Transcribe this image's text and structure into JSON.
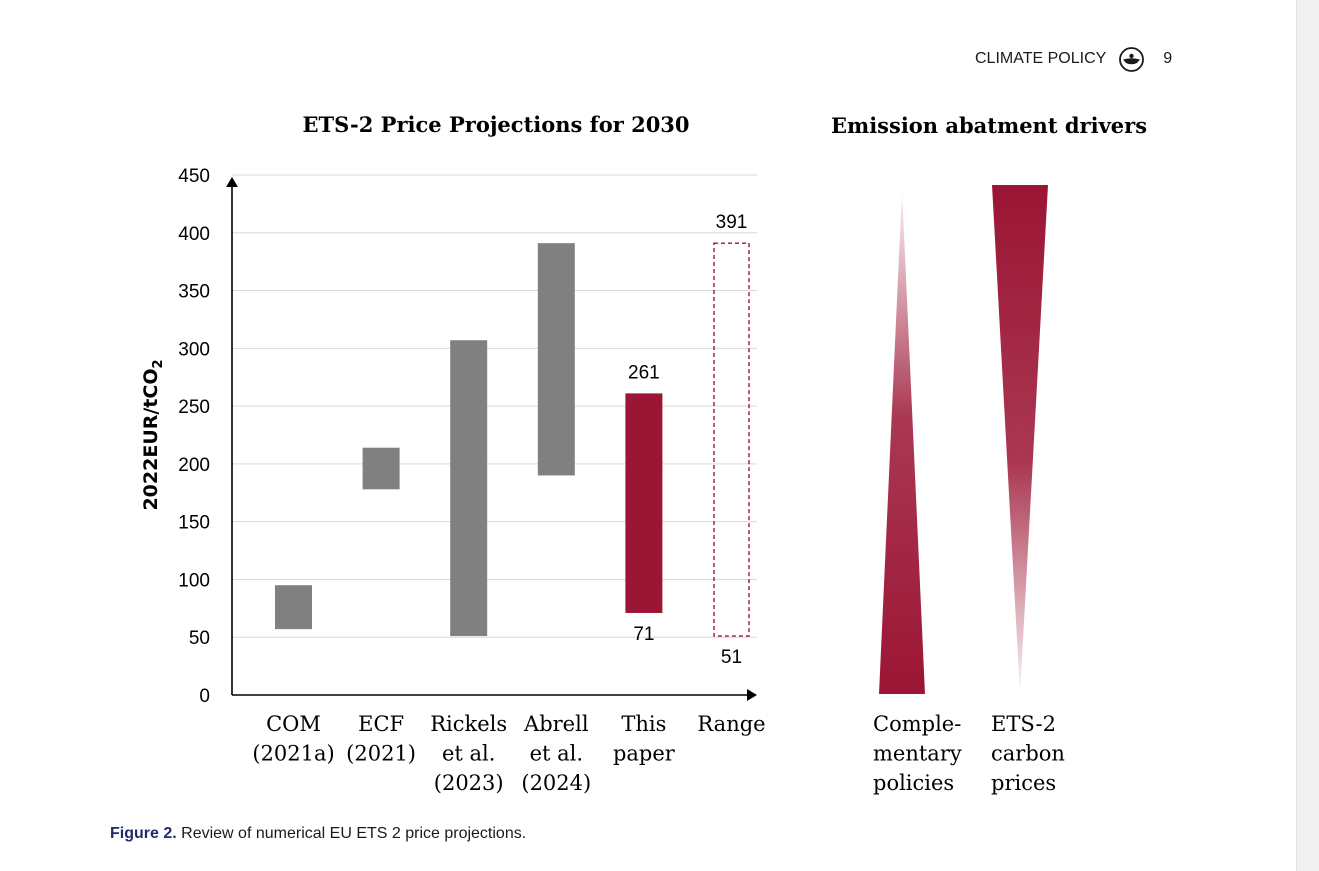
{
  "header": {
    "journal": "CLIMATE POLICY",
    "logo_icon": "journal-logo-icon",
    "page_number": "9"
  },
  "caption": {
    "label": "Figure 2.",
    "text": "Review of numerical EU ETS 2 price projections."
  },
  "colors": {
    "gray_bar": "#808080",
    "highlight_bar": "#9b1534",
    "gridline": "#d9d9d9",
    "axis": "#000000",
    "caption_label": "#1f2d6e"
  },
  "chart_data": [
    {
      "type": "bar",
      "subtype": "floating range",
      "title": "ETS-2 Price Projections for 2030",
      "ylabel": "2022EUR/tCO2",
      "xlabel": "",
      "ylim": [
        0,
        450
      ],
      "yticks": [
        "0",
        "50",
        "100",
        "150",
        "200",
        "250",
        "300",
        "350",
        "400",
        "450"
      ],
      "grid": true,
      "categories": [
        [
          "COM",
          "(2021a)"
        ],
        [
          "ECF",
          "(2021)"
        ],
        [
          "Rickels",
          "et al.",
          "(2023)"
        ],
        [
          "Abrell",
          "et al.",
          "(2024)"
        ],
        [
          "This",
          "paper"
        ],
        [
          "Range"
        ]
      ],
      "ranges": [
        {
          "low": 57,
          "high": 95,
          "style": "gray"
        },
        {
          "low": 178,
          "high": 214,
          "style": "gray"
        },
        {
          "low": 51,
          "high": 307,
          "style": "gray"
        },
        {
          "low": 190,
          "high": 391,
          "style": "gray"
        },
        {
          "low": 71,
          "high": 261,
          "style": "highlight"
        },
        {
          "low": 51,
          "high": 391,
          "style": "dashed"
        }
      ],
      "annotations": [
        {
          "text": "261",
          "category": 4,
          "value": 261,
          "position": "above"
        },
        {
          "text": "71",
          "category": 4,
          "value": 71,
          "position": "below"
        },
        {
          "text": "391",
          "category": 5,
          "value": 391,
          "position": "above"
        },
        {
          "text": "51",
          "category": 5,
          "value": 51,
          "position": "below"
        }
      ]
    },
    {
      "type": "other",
      "subtype": "wedge diagram",
      "title": "Emission abatment drivers",
      "wedges": [
        {
          "label": [
            "Comple-",
            "mentary",
            "policies"
          ],
          "direction": "widens downward",
          "fill": "gradient"
        },
        {
          "label": [
            "ETS-2",
            "carbon",
            "prices"
          ],
          "direction": "narrows downward",
          "fill": "gradient"
        }
      ]
    }
  ]
}
